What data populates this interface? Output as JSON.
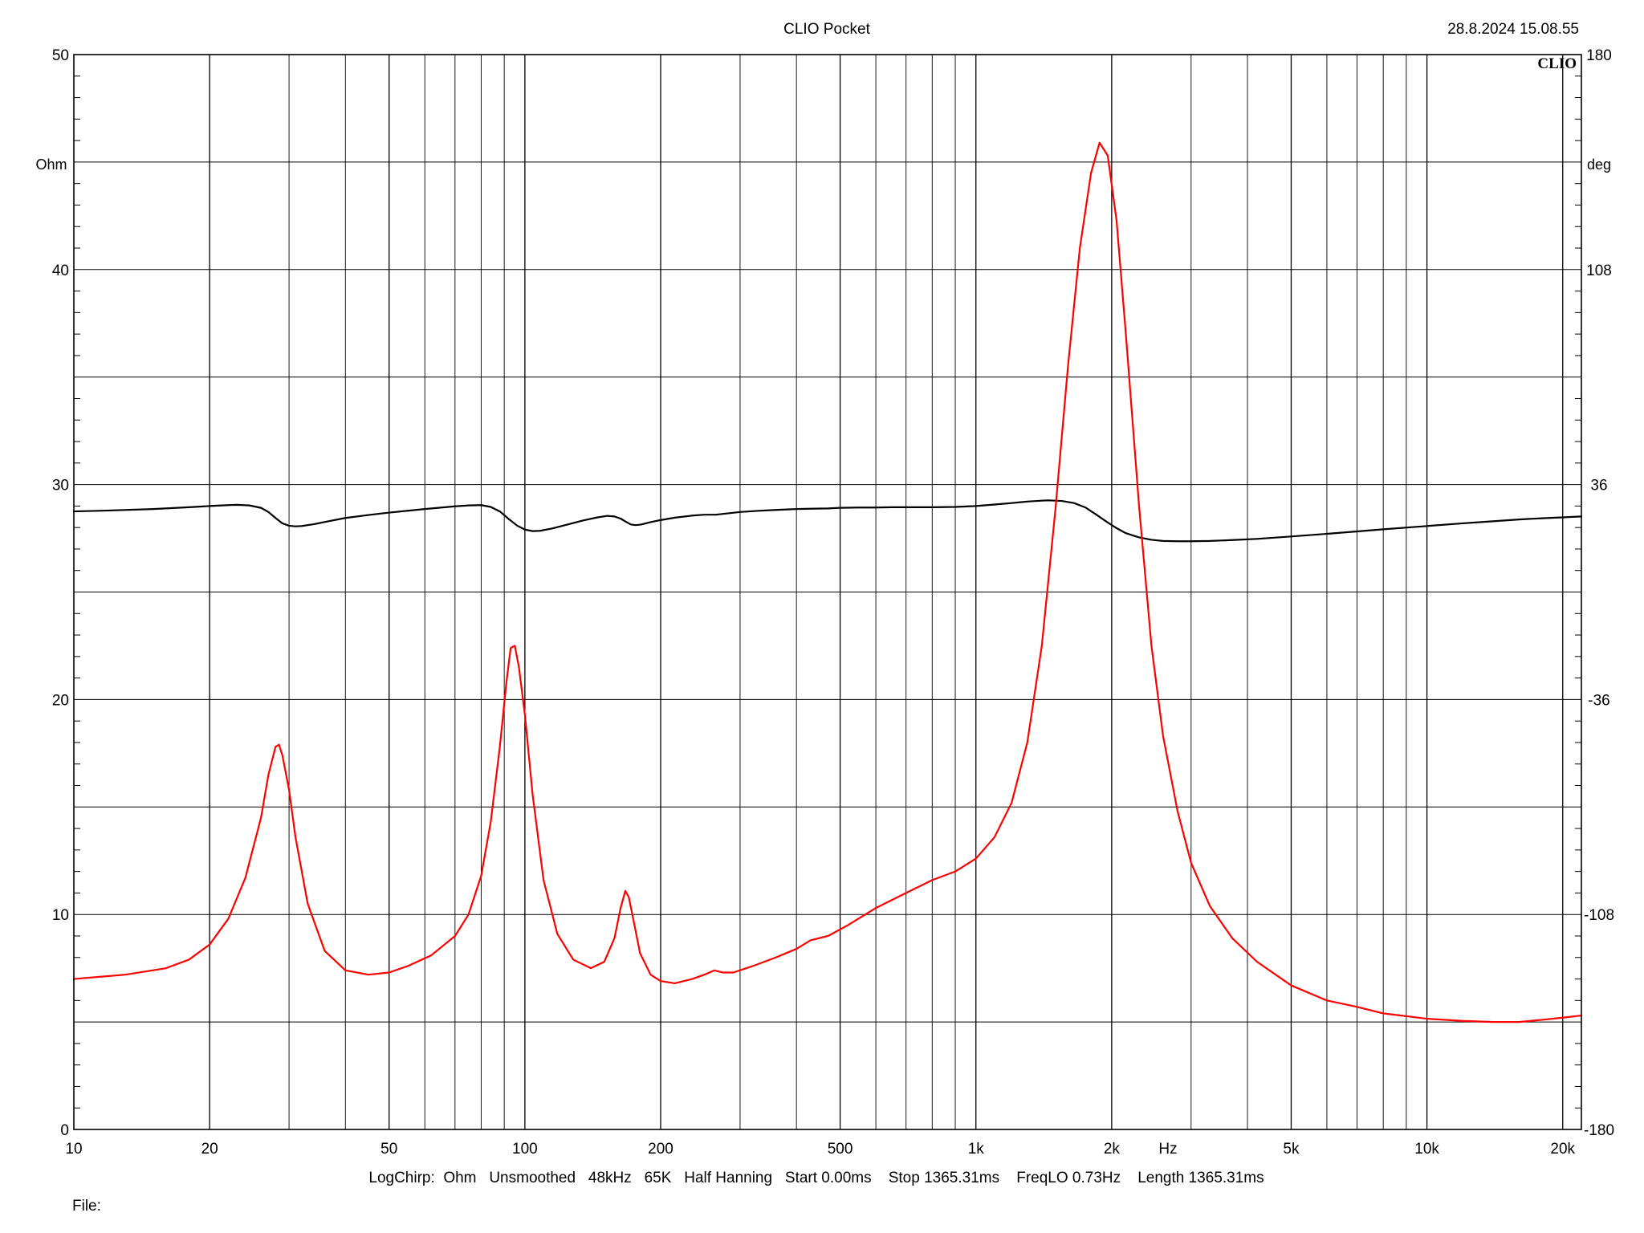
{
  "header": {
    "title": "CLIO Pocket",
    "datetime": "28.8.2024 15.08.55",
    "logo": "CLIO"
  },
  "footer": {
    "settings": "LogChirp:  Ohm   Unsmoothed   48kHz   65K   Half Hanning   Start 0.00ms    Stop 1365.31ms    FreqLO 0.73Hz    Length 1365.31ms",
    "file_label": "File:"
  },
  "chart_data": {
    "type": "line",
    "xscale": "log",
    "xlim": [
      10,
      22000
    ],
    "x_ticks": [
      {
        "value": 10,
        "label": "10"
      },
      {
        "value": 20,
        "label": "20"
      },
      {
        "value": 50,
        "label": "50"
      },
      {
        "value": 100,
        "label": "100"
      },
      {
        "value": 200,
        "label": "200"
      },
      {
        "value": 500,
        "label": "500"
      },
      {
        "value": 1000,
        "label": "1k"
      },
      {
        "value": 2000,
        "label": "2k"
      },
      {
        "value": 5000,
        "label": "5k"
      },
      {
        "value": 10000,
        "label": "10k"
      },
      {
        "value": 20000,
        "label": "20k"
      }
    ],
    "xunit_label": "Hz",
    "y_left": {
      "label": "Ohm",
      "lim": [
        0,
        50
      ],
      "ticks": [
        0,
        10,
        20,
        30,
        40,
        50
      ]
    },
    "y_right": {
      "label": "deg",
      "lim": [
        -180,
        180
      ],
      "ticks": [
        -180,
        -108,
        -36,
        36,
        108,
        180
      ]
    },
    "grid": true,
    "series": [
      {
        "axis": "right",
        "color": "#000000",
        "points": [
          [
            10,
            27.0
          ],
          [
            12,
            27.3
          ],
          [
            15,
            27.8
          ],
          [
            18,
            28.4
          ],
          [
            20,
            28.8
          ],
          [
            22,
            29.1
          ],
          [
            23,
            29.2
          ],
          [
            24.5,
            29.0
          ],
          [
            26,
            28.2
          ],
          [
            27,
            26.8
          ],
          [
            28,
            24.8
          ],
          [
            29,
            23.0
          ],
          [
            30,
            22.2
          ],
          [
            31,
            22.0
          ],
          [
            32,
            22.1
          ],
          [
            34,
            22.7
          ],
          [
            37,
            23.8
          ],
          [
            40,
            24.8
          ],
          [
            45,
            25.8
          ],
          [
            50,
            26.6
          ],
          [
            60,
            27.8
          ],
          [
            70,
            28.7
          ],
          [
            75,
            29.0
          ],
          [
            80,
            29.1
          ],
          [
            84,
            28.5
          ],
          [
            88,
            27.0
          ],
          [
            92,
            24.5
          ],
          [
            96,
            22.3
          ],
          [
            100,
            20.9
          ],
          [
            104,
            20.4
          ],
          [
            108,
            20.5
          ],
          [
            115,
            21.3
          ],
          [
            125,
            22.7
          ],
          [
            135,
            24.0
          ],
          [
            145,
            25.0
          ],
          [
            152,
            25.5
          ],
          [
            158,
            25.3
          ],
          [
            163,
            24.6
          ],
          [
            168,
            23.4
          ],
          [
            172,
            22.6
          ],
          [
            176,
            22.4
          ],
          [
            181,
            22.6
          ],
          [
            190,
            23.4
          ],
          [
            200,
            24.1
          ],
          [
            215,
            24.9
          ],
          [
            235,
            25.6
          ],
          [
            250,
            25.9
          ],
          [
            265,
            25.9
          ],
          [
            280,
            26.3
          ],
          [
            300,
            26.8
          ],
          [
            330,
            27.2
          ],
          [
            360,
            27.5
          ],
          [
            400,
            27.8
          ],
          [
            430,
            27.9
          ],
          [
            470,
            28.0
          ],
          [
            500,
            28.2
          ],
          [
            550,
            28.3
          ],
          [
            600,
            28.3
          ],
          [
            650,
            28.4
          ],
          [
            700,
            28.4
          ],
          [
            800,
            28.4
          ],
          [
            900,
            28.5
          ],
          [
            1000,
            28.8
          ],
          [
            1100,
            29.3
          ],
          [
            1200,
            29.8
          ],
          [
            1300,
            30.3
          ],
          [
            1400,
            30.6
          ],
          [
            1450,
            30.7
          ],
          [
            1550,
            30.5
          ],
          [
            1650,
            29.8
          ],
          [
            1750,
            28.3
          ],
          [
            1850,
            25.9
          ],
          [
            1950,
            23.5
          ],
          [
            2050,
            21.4
          ],
          [
            2150,
            19.7
          ],
          [
            2300,
            18.3
          ],
          [
            2450,
            17.5
          ],
          [
            2600,
            17.1
          ],
          [
            2800,
            17.0
          ],
          [
            3000,
            17.0
          ],
          [
            3300,
            17.1
          ],
          [
            3700,
            17.4
          ],
          [
            4200,
            17.8
          ],
          [
            5000,
            18.6
          ],
          [
            6000,
            19.5
          ],
          [
            7000,
            20.3
          ],
          [
            8000,
            21.0
          ],
          [
            10000,
            22.1
          ],
          [
            12000,
            23.0
          ],
          [
            14000,
            23.7
          ],
          [
            16000,
            24.3
          ],
          [
            18000,
            24.7
          ],
          [
            20000,
            25.0
          ],
          [
            22000,
            25.3
          ]
        ]
      },
      {
        "axis": "left",
        "color": "#ff0000",
        "points": [
          [
            10,
            7.0
          ],
          [
            13,
            7.2
          ],
          [
            16,
            7.5
          ],
          [
            18,
            7.9
          ],
          [
            20,
            8.6
          ],
          [
            22,
            9.8
          ],
          [
            24,
            11.7
          ],
          [
            26,
            14.5
          ],
          [
            27,
            16.5
          ],
          [
            28,
            17.8
          ],
          [
            28.5,
            17.9
          ],
          [
            29,
            17.4
          ],
          [
            30,
            15.8
          ],
          [
            31,
            13.6
          ],
          [
            33,
            10.5
          ],
          [
            36,
            8.3
          ],
          [
            40,
            7.4
          ],
          [
            45,
            7.2
          ],
          [
            50,
            7.3
          ],
          [
            55,
            7.6
          ],
          [
            62,
            8.1
          ],
          [
            70,
            9.0
          ],
          [
            75,
            10.0
          ],
          [
            80,
            11.8
          ],
          [
            84,
            14.3
          ],
          [
            88,
            17.8
          ],
          [
            91,
            20.8
          ],
          [
            93,
            22.4
          ],
          [
            95,
            22.5
          ],
          [
            97,
            21.5
          ],
          [
            100,
            19.3
          ],
          [
            104,
            15.6
          ],
          [
            110,
            11.6
          ],
          [
            118,
            9.1
          ],
          [
            128,
            7.9
          ],
          [
            140,
            7.5
          ],
          [
            150,
            7.8
          ],
          [
            158,
            8.9
          ],
          [
            163,
            10.3
          ],
          [
            167,
            11.1
          ],
          [
            170,
            10.8
          ],
          [
            175,
            9.5
          ],
          [
            180,
            8.2
          ],
          [
            190,
            7.2
          ],
          [
            200,
            6.9
          ],
          [
            215,
            6.8
          ],
          [
            235,
            7.0
          ],
          [
            250,
            7.2
          ],
          [
            263,
            7.4
          ],
          [
            275,
            7.3
          ],
          [
            290,
            7.3
          ],
          [
            320,
            7.6
          ],
          [
            360,
            8.0
          ],
          [
            400,
            8.4
          ],
          [
            430,
            8.8
          ],
          [
            470,
            9.0
          ],
          [
            520,
            9.5
          ],
          [
            600,
            10.3
          ],
          [
            700,
            11.0
          ],
          [
            800,
            11.6
          ],
          [
            900,
            12.0
          ],
          [
            1000,
            12.6
          ],
          [
            1100,
            13.6
          ],
          [
            1200,
            15.2
          ],
          [
            1300,
            18.0
          ],
          [
            1400,
            22.5
          ],
          [
            1500,
            28.8
          ],
          [
            1600,
            35.5
          ],
          [
            1700,
            41.0
          ],
          [
            1800,
            44.5
          ],
          [
            1880,
            45.9
          ],
          [
            1960,
            45.3
          ],
          [
            2050,
            42.3
          ],
          [
            2150,
            37.0
          ],
          [
            2300,
            29.0
          ],
          [
            2450,
            22.5
          ],
          [
            2600,
            18.3
          ],
          [
            2800,
            14.8
          ],
          [
            3000,
            12.4
          ],
          [
            3300,
            10.4
          ],
          [
            3700,
            8.9
          ],
          [
            4200,
            7.8
          ],
          [
            5000,
            6.7
          ],
          [
            6000,
            6.0
          ],
          [
            7000,
            5.7
          ],
          [
            8000,
            5.4
          ],
          [
            10000,
            5.15
          ],
          [
            12000,
            5.05
          ],
          [
            14000,
            5.0
          ],
          [
            16000,
            5.0
          ],
          [
            18000,
            5.1
          ],
          [
            20000,
            5.2
          ],
          [
            22000,
            5.3
          ]
        ]
      }
    ]
  }
}
